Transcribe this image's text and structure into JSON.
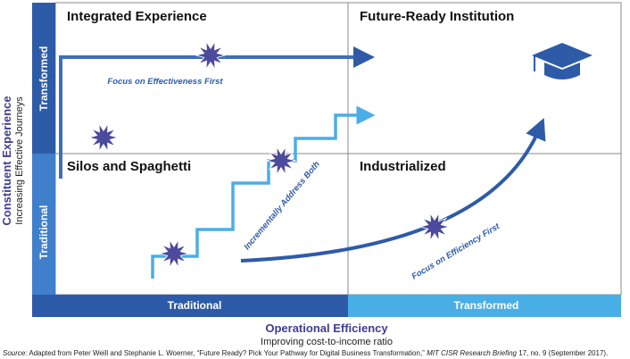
{
  "quadrants": {
    "top_left": "Integrated Experience",
    "top_right": "Future-Ready Institution",
    "bottom_left": "Silos and Spaghetti",
    "bottom_right": "Industrialized"
  },
  "y_axis": {
    "title": "Constituent Experience",
    "subtitle": "Increasing Effective Journeys",
    "low": "Traditional",
    "high": "Transformed"
  },
  "x_axis": {
    "title": "Operational Efficiency",
    "subtitle": "Improving cost-to-income ratio",
    "low": "Traditional",
    "high": "Transformed"
  },
  "paths": {
    "effectiveness": "Focus on Effectiveness First",
    "both": "Incrementally Address Both",
    "efficiency": "Focus on Efficiency First"
  },
  "source": {
    "label": "Source:",
    "text": " Adapted from Peter Weill and Stephanie L. Woerner, “Future Ready? Pick Your Pathway for Digital Business Transformation,” ",
    "journal": "MIT CISR Research Briefing",
    "rest": " 17, no. 9 (September 2017)."
  }
}
